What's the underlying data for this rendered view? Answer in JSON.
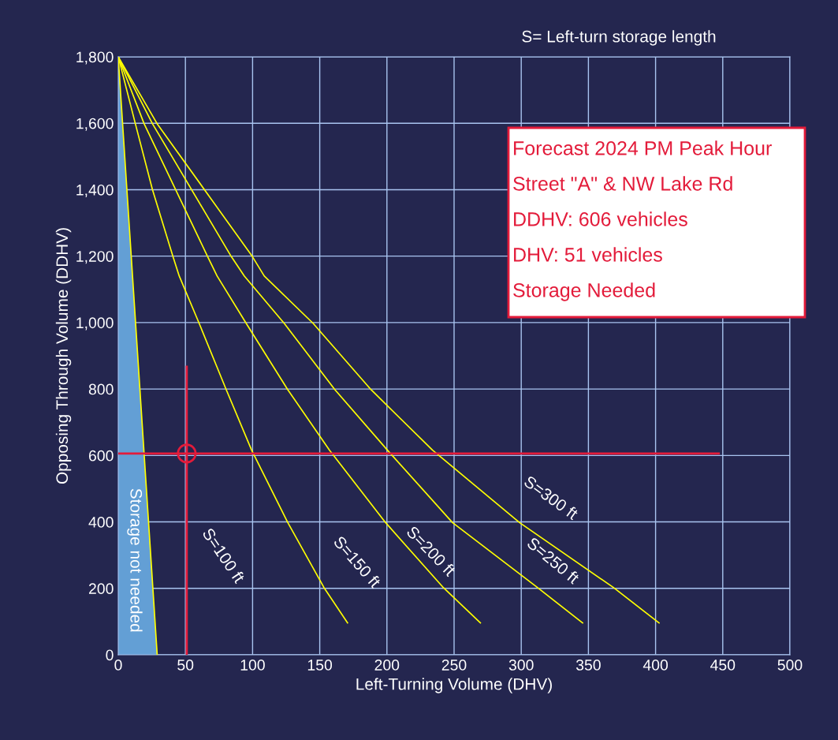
{
  "chart_data": {
    "type": "line",
    "xlabel": "Left-Turning Volume (DHV)",
    "ylabel": "Opposing Through Volume (DDHV)",
    "xlim": [
      0,
      500
    ],
    "ylim": [
      0,
      1800
    ],
    "xticks": [
      0,
      50,
      100,
      150,
      200,
      250,
      300,
      350,
      400,
      450,
      500
    ],
    "yticks": [
      0,
      200,
      400,
      600,
      800,
      {
        "value": 1000,
        "label": "1,000"
      },
      {
        "value": 1200,
        "label": "1,200"
      },
      {
        "value": 1400,
        "label": "1,400"
      },
      {
        "value": 1600,
        "label": "1,600"
      },
      {
        "value": 1800,
        "label": "1,800"
      }
    ],
    "grid": true,
    "marker": "none",
    "line_style": "solid",
    "series": [
      {
        "type": "area",
        "color": "#639fd5",
        "x": [
          0,
          29
        ],
        "values": [
          1800,
          0
        ]
      },
      {
        "color": "#ffff00",
        "x": [
          0,
          12.7,
          25.4,
          40.7,
          45.4,
          60.2,
          80.4,
          99.3,
          126.2,
          153.2,
          170.7
        ],
        "values": [
          1800,
          1599,
          1401,
          1199,
          1140,
          998,
          798,
          616,
          398,
          202,
          96
        ]
      },
      {
        "color": "#ffff00",
        "x": [
          0,
          19.2,
          66.5,
          73.6,
          95.2,
          126.2,
          157.2,
          199,
          242.1,
          269.6
        ],
        "values": [
          1800,
          1599,
          1199,
          1140,
          998,
          798,
          616,
          398,
          202,
          96
        ]
      },
      {
        "color": "#ffff00",
        "x": [
          0,
          25.4,
          84.1,
          93.9,
          123.5,
          161.3,
          200.4,
          248.8,
          312.2,
          345.7
        ],
        "values": [
          1800,
          1599,
          1199,
          1140,
          998,
          798,
          616,
          398,
          202,
          96
        ]
      },
      {
        "color": "#ffff00",
        "x": [
          0,
          28.9,
          99.8,
          108.7,
          145,
          188.2,
          234,
          298.7,
          368.8,
          402.6
        ],
        "values": [
          1800,
          1599,
          1199,
          1140,
          998,
          798,
          616,
          398,
          202,
          96
        ]
      },
      {
        "color": "#e31b3a",
        "x": [
          0,
          447
        ],
        "values": [
          606,
          606
        ]
      },
      {
        "color": "#e31b3a",
        "x": [
          51,
          51
        ],
        "values": [
          0,
          867
        ]
      },
      {
        "type": "scatter",
        "color": "#e31b3a",
        "marker": "circle",
        "x": [
          51
        ],
        "values": [
          606
        ]
      }
    ],
    "annotations": [
      "S= Left-turn storage length",
      "Forecast 2024 PM Peak Hour",
      "Street \"A\" & NW Lake Rd",
      "DDHV: 606 vehicles",
      "DHV: 51 vehicles",
      "Storage Needed",
      "Storage not needed",
      "S=100 ft",
      "S=150 ft",
      "S=200 ft",
      "S=250 ft",
      "S=300 ft"
    ]
  }
}
